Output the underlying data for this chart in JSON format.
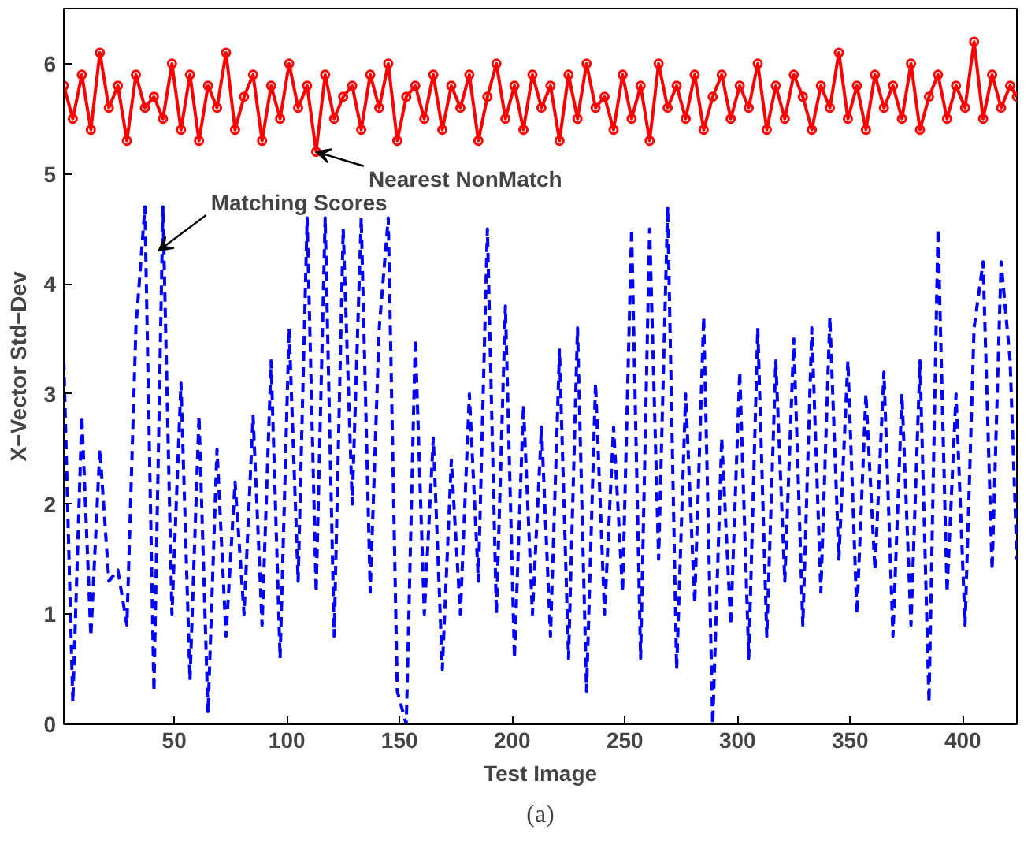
{
  "chart_data": {
    "type": "line",
    "xlabel": "Test Image",
    "ylabel": "X−Vector Std−Dev",
    "xlim": [
      1,
      424
    ],
    "ylim": [
      0,
      6.5
    ],
    "xticks": [
      50,
      100,
      150,
      200,
      250,
      300,
      350,
      400
    ],
    "yticks": [
      0,
      1,
      2,
      3,
      4,
      5,
      6
    ],
    "grid": false,
    "x": [
      1,
      5,
      9,
      13,
      17,
      21,
      25,
      29,
      33,
      37,
      41,
      45,
      49,
      53,
      57,
      61,
      65,
      69,
      73,
      77,
      81,
      85,
      89,
      93,
      97,
      101,
      105,
      109,
      113,
      117,
      121,
      125,
      129,
      133,
      137,
      141,
      145,
      149,
      153,
      157,
      161,
      165,
      169,
      173,
      177,
      181,
      185,
      189,
      193,
      197,
      201,
      205,
      209,
      213,
      217,
      221,
      225,
      229,
      233,
      237,
      241,
      245,
      249,
      253,
      257,
      261,
      265,
      269,
      273,
      277,
      281,
      285,
      289,
      293,
      297,
      301,
      305,
      309,
      313,
      317,
      321,
      325,
      329,
      333,
      337,
      341,
      345,
      349,
      353,
      357,
      361,
      365,
      369,
      373,
      377,
      381,
      385,
      389,
      393,
      397,
      401,
      405,
      409,
      413,
      417,
      421,
      424
    ],
    "series": [
      {
        "color": "#ff0000",
        "marker": "circle",
        "line_style": "solid",
        "values": [
          5.8,
          5.5,
          5.9,
          5.4,
          6.1,
          5.6,
          5.8,
          5.3,
          5.9,
          5.6,
          5.7,
          5.5,
          6.0,
          5.4,
          5.9,
          5.3,
          5.8,
          5.6,
          6.1,
          5.4,
          5.7,
          5.9,
          5.3,
          5.8,
          5.5,
          6.0,
          5.6,
          5.8,
          5.2,
          5.9,
          5.5,
          5.7,
          5.8,
          5.4,
          5.9,
          5.6,
          6.0,
          5.3,
          5.7,
          5.8,
          5.5,
          5.9,
          5.4,
          5.8,
          5.6,
          5.9,
          5.3,
          5.7,
          6.0,
          5.5,
          5.8,
          5.4,
          5.9,
          5.6,
          5.8,
          5.3,
          5.9,
          5.5,
          6.0,
          5.6,
          5.7,
          5.4,
          5.9,
          5.5,
          5.8,
          5.3,
          6.0,
          5.6,
          5.8,
          5.5,
          5.9,
          5.4,
          5.7,
          5.9,
          5.5,
          5.8,
          5.6,
          6.0,
          5.4,
          5.8,
          5.5,
          5.9,
          5.7,
          5.4,
          5.8,
          5.6,
          6.1,
          5.5,
          5.8,
          5.4,
          5.9,
          5.6,
          5.8,
          5.5,
          6.0,
          5.4,
          5.7,
          5.9,
          5.5,
          5.8,
          5.6,
          6.2,
          5.5,
          5.9,
          5.6,
          5.8,
          5.7
        ]
      },
      {
        "color": "#0000ff",
        "marker": "none",
        "line_style": "dashed",
        "values": [
          3.3,
          0.2,
          2.8,
          0.8,
          2.5,
          1.3,
          1.4,
          0.9,
          3.6,
          4.7,
          0.3,
          4.7,
          1.0,
          3.1,
          0.4,
          2.8,
          0.1,
          2.5,
          0.8,
          2.2,
          1.0,
          2.8,
          0.9,
          3.3,
          0.6,
          3.6,
          1.3,
          4.6,
          1.2,
          4.6,
          0.8,
          4.5,
          2.0,
          4.6,
          1.2,
          3.6,
          4.6,
          0.3,
          0.0,
          3.5,
          1.0,
          2.6,
          0.5,
          2.4,
          1.0,
          3.0,
          1.3,
          4.5,
          1.0,
          3.8,
          0.6,
          2.9,
          1.0,
          2.7,
          0.8,
          3.4,
          0.6,
          3.6,
          0.3,
          3.1,
          1.0,
          2.7,
          1.2,
          4.5,
          0.6,
          4.5,
          1.5,
          4.7,
          0.5,
          3.0,
          1.1,
          3.7,
          0.0,
          2.6,
          0.9,
          3.2,
          0.6,
          3.6,
          0.8,
          3.3,
          1.3,
          3.5,
          0.9,
          3.6,
          1.2,
          3.7,
          1.5,
          3.3,
          1.0,
          3.0,
          1.4,
          3.2,
          0.8,
          3.0,
          0.9,
          3.3,
          0.2,
          4.5,
          1.2,
          3.0,
          0.9,
          3.6,
          4.2,
          1.4,
          4.2,
          3.3,
          1.5
        ]
      }
    ],
    "annotations": [
      {
        "text": "Matching Scores",
        "x": 43,
        "y": 4.3
      },
      {
        "text": "Nearest NonMatch",
        "x": 113,
        "y": 5.2
      },
      "(a)"
    ]
  }
}
